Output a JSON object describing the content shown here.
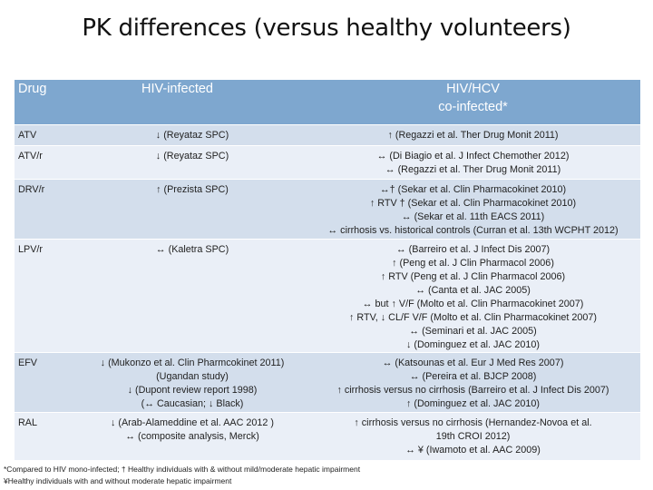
{
  "title": "PK differences (versus healthy volunteers)",
  "headers": {
    "drug": "Drug",
    "hiv": "HIV-infected",
    "hivhcv": [
      "HIV/HCV",
      "co-infected*"
    ]
  },
  "rows": [
    {
      "drug": "ATV",
      "hiv": [
        "↓ (Reyataz SPC)"
      ],
      "hivhcv": [
        "↑ (Regazzi et al. Ther Drug Monit 2011)"
      ]
    },
    {
      "drug": "ATV/r",
      "hiv": [
        "↓  (Reyataz SPC)"
      ],
      "hivhcv": [
        "↔ (Di Biagio et al. J Infect Chemother 2012)",
        "↔ (Regazzi et al. Ther Drug Monit 2011)"
      ]
    },
    {
      "drug": "DRV/r",
      "hiv": [
        "↑ (Prezista SPC)"
      ],
      "hivhcv": [
        "↔† (Sekar et al. Clin Pharmacokinet 2010)",
        "↑  RTV † (Sekar et al. Clin Pharmacokinet 2010)",
        "↔ (Sekar et al. 11th EACS 2011)",
        "↔ cirrhosis vs. historical controls (Curran et al. 13th WCPHT 2012)"
      ]
    },
    {
      "drug": "LPV/r",
      "hiv": [
        "↔ (Kaletra SPC)"
      ],
      "hivhcv": [
        "↔ (Barreiro et al. J Infect Dis 2007)",
        "↑ (Peng et al. J Clin Pharmacol 2006)",
        "↑ RTV (Peng et al. J Clin Pharmacol 2006)",
        "↔ (Canta et al. JAC 2005)",
        "↔ but ↑ V/F (Molto et al. Clin Pharmacokinet 2007)",
        "↑ RTV, ↓ CL/F V/F (Molto et al. Clin Pharmacokinet 2007)",
        "↔ (Seminari et al. JAC 2005)",
        "↓ (Dominguez et al. JAC 2010)"
      ]
    },
    {
      "drug": "EFV",
      "hiv": [
        "↓ (Mukonzo et al. Clin Pharmcokinet 2011)",
        "(Ugandan study)",
        "↓ (Dupont review report 1998)",
        "(↔ Caucasian; ↓ Black)"
      ],
      "hivhcv": [
        "↔ (Katsounas et al. Eur J Med Res 2007)",
        "↔ (Pereira et al. BJCP 2008)",
        "↑ cirrhosis versus no cirrhosis (Barreiro et al. J Infect Dis 2007)",
        "↑ (Dominguez et al. JAC 2010)"
      ]
    },
    {
      "drug": "RAL",
      "hiv": [
        "↓ (Arab-Alameddine et al. AAC 2012 )",
        "↔ (composite analysis, Merck)"
      ],
      "hivhcv": [
        "↑ cirrhosis versus no cirrhosis (Hernandez-Novoa et al.",
        "19th CROI 2012)",
        "↔ ¥ (Iwamoto et al. AAC 2009)"
      ]
    }
  ],
  "footnotes": [
    "*Compared to HIV mono-infected; † Healthy individuals with & without mild/moderate hepatic impairment",
    "¥Healthy individuals with and without moderate hepatic impairment"
  ]
}
